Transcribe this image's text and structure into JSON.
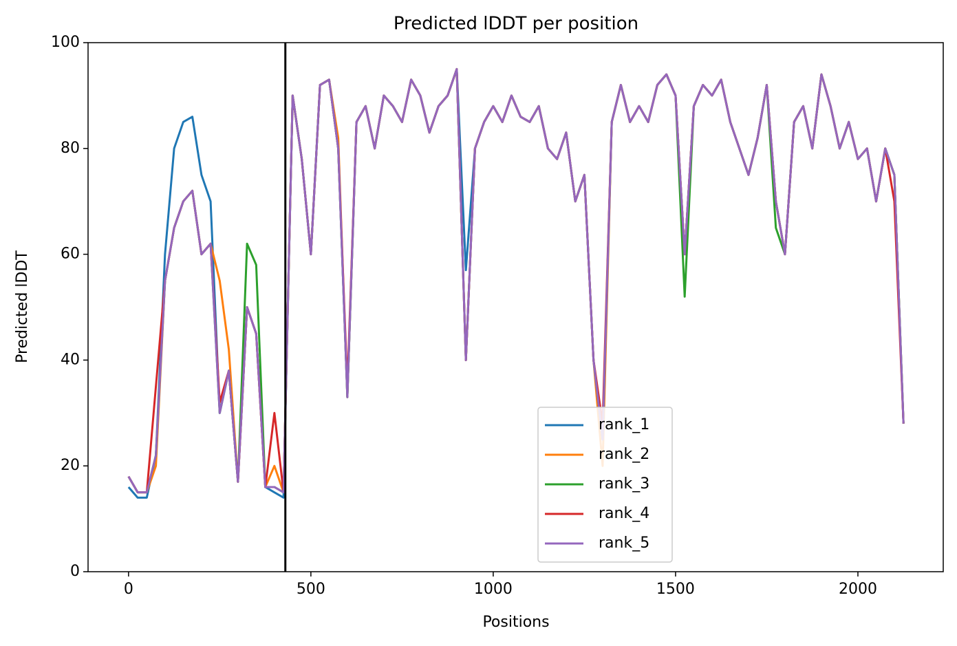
{
  "chart_data": {
    "type": "line",
    "title": "Predicted lDDT per position",
    "xlabel": "Positions",
    "ylabel": "Predicted lDDT",
    "xlim": [
      -111,
      2234
    ],
    "ylim": [
      0,
      100
    ],
    "xticks": [
      0,
      500,
      1000,
      1500,
      2000
    ],
    "yticks": [
      0,
      20,
      40,
      60,
      80,
      100
    ],
    "grid": false,
    "legend": "lower center",
    "vlines": [
      430
    ],
    "x": [
      0,
      25,
      50,
      75,
      100,
      125,
      150,
      175,
      200,
      225,
      250,
      275,
      300,
      325,
      350,
      375,
      400,
      425,
      450,
      475,
      500,
      525,
      550,
      575,
      600,
      625,
      650,
      675,
      700,
      725,
      750,
      775,
      800,
      825,
      850,
      875,
      900,
      925,
      950,
      975,
      1000,
      1025,
      1050,
      1075,
      1100,
      1125,
      1150,
      1175,
      1200,
      1225,
      1250,
      1275,
      1300,
      1325,
      1350,
      1375,
      1400,
      1425,
      1450,
      1475,
      1500,
      1525,
      1550,
      1575,
      1600,
      1625,
      1650,
      1675,
      1700,
      1725,
      1750,
      1775,
      1800,
      1825,
      1850,
      1875,
      1900,
      1925,
      1950,
      1975,
      2000,
      2025,
      2050,
      2075,
      2100,
      2125
    ],
    "series": [
      {
        "name": "rank_1",
        "color": "#1f77b4",
        "values": [
          16,
          14,
          14,
          22,
          60,
          80,
          85,
          86,
          75,
          70,
          30,
          38,
          17,
          50,
          45,
          16,
          15,
          14,
          90,
          78,
          60,
          92,
          93,
          80,
          33,
          85,
          88,
          80,
          90,
          88,
          85,
          93,
          90,
          83,
          88,
          90,
          95,
          57,
          80,
          85,
          88,
          85,
          90,
          86,
          85,
          88,
          80,
          78,
          83,
          70,
          75,
          40,
          25,
          85,
          92,
          85,
          88,
          85,
          92,
          94,
          90,
          60,
          88,
          92,
          90,
          93,
          85,
          80,
          75,
          82,
          92,
          70,
          60,
          85,
          88,
          80,
          94,
          88,
          80,
          85,
          78,
          80,
          70,
          80,
          75,
          28
        ]
      },
      {
        "name": "rank_2",
        "color": "#ff7f0e",
        "values": [
          18,
          15,
          15,
          20,
          55,
          65,
          70,
          72,
          60,
          62,
          55,
          42,
          17,
          50,
          45,
          16,
          20,
          15,
          90,
          78,
          60,
          92,
          93,
          82,
          33,
          85,
          88,
          80,
          90,
          88,
          85,
          93,
          90,
          83,
          88,
          90,
          95,
          40,
          80,
          85,
          88,
          85,
          90,
          86,
          85,
          88,
          80,
          78,
          83,
          70,
          75,
          40,
          20,
          85,
          92,
          85,
          88,
          85,
          92,
          94,
          90,
          60,
          88,
          92,
          90,
          93,
          85,
          80,
          75,
          82,
          92,
          70,
          60,
          85,
          88,
          80,
          94,
          88,
          80,
          85,
          78,
          80,
          70,
          80,
          75,
          28
        ]
      },
      {
        "name": "rank_3",
        "color": "#2ca02c",
        "values": [
          18,
          15,
          15,
          22,
          55,
          65,
          70,
          72,
          60,
          62,
          30,
          38,
          17,
          62,
          58,
          16,
          16,
          15,
          90,
          78,
          60,
          92,
          93,
          80,
          33,
          85,
          88,
          80,
          90,
          88,
          85,
          93,
          90,
          83,
          88,
          90,
          95,
          40,
          80,
          85,
          88,
          85,
          90,
          86,
          85,
          88,
          80,
          78,
          83,
          70,
          75,
          40,
          25,
          85,
          92,
          85,
          88,
          85,
          92,
          94,
          90,
          52,
          88,
          92,
          90,
          93,
          85,
          80,
          75,
          82,
          92,
          65,
          60,
          85,
          88,
          80,
          94,
          88,
          80,
          85,
          78,
          80,
          70,
          80,
          75,
          28
        ]
      },
      {
        "name": "rank_4",
        "color": "#d62728",
        "values": [
          18,
          15,
          15,
          35,
          55,
          65,
          70,
          72,
          60,
          62,
          32,
          38,
          17,
          50,
          45,
          16,
          30,
          15,
          90,
          78,
          60,
          92,
          93,
          80,
          35,
          85,
          88,
          80,
          90,
          88,
          85,
          93,
          90,
          83,
          88,
          90,
          95,
          40,
          80,
          85,
          88,
          85,
          90,
          86,
          85,
          88,
          80,
          78,
          83,
          70,
          75,
          40,
          28,
          85,
          92,
          85,
          88,
          85,
          92,
          94,
          90,
          60,
          88,
          92,
          90,
          93,
          85,
          80,
          75,
          82,
          92,
          70,
          60,
          85,
          88,
          80,
          94,
          88,
          80,
          85,
          78,
          80,
          70,
          80,
          70,
          28
        ]
      },
      {
        "name": "rank_5",
        "color": "#9467bd",
        "values": [
          18,
          15,
          15,
          22,
          55,
          65,
          70,
          72,
          60,
          62,
          30,
          38,
          17,
          50,
          45,
          16,
          16,
          15,
          90,
          78,
          60,
          92,
          93,
          80,
          33,
          85,
          88,
          80,
          90,
          88,
          85,
          93,
          90,
          83,
          88,
          90,
          95,
          40,
          80,
          85,
          88,
          85,
          90,
          86,
          85,
          88,
          80,
          78,
          83,
          70,
          75,
          40,
          25,
          85,
          92,
          85,
          88,
          85,
          92,
          94,
          90,
          60,
          88,
          92,
          90,
          93,
          85,
          80,
          75,
          82,
          92,
          70,
          60,
          85,
          88,
          80,
          94,
          88,
          80,
          85,
          78,
          80,
          70,
          80,
          75,
          28
        ]
      }
    ]
  }
}
